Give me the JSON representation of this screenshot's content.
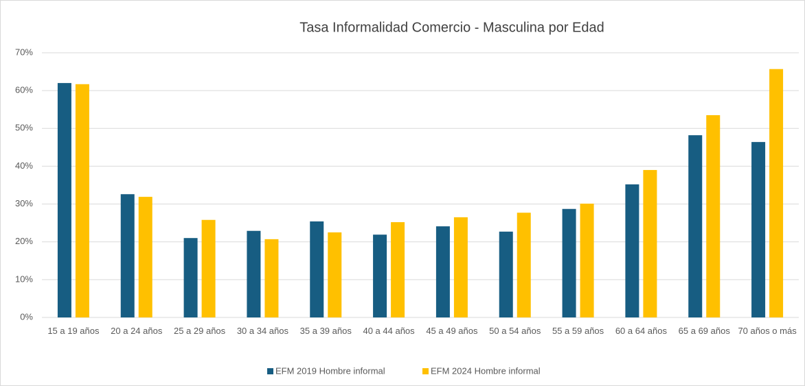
{
  "chart_data": {
    "type": "bar",
    "title": "Tasa Informalidad Comercio -  Masculina por Edad",
    "categories": [
      "15 a 19 años",
      "20 a 24 años",
      "25 a 29 años",
      "30 a 34 años",
      "35 a 39 años",
      "40 a 44 años",
      "45 a 49 años",
      "50 a 54 años",
      "55 a 59 años",
      "60 a 64 años",
      "65 a 69 años",
      "70 años o más"
    ],
    "series": [
      {
        "name": "EFM 2019 Hombre informal",
        "color": "#175d82",
        "values": [
          62.0,
          32.6,
          21.0,
          22.9,
          25.4,
          21.9,
          24.1,
          22.7,
          28.7,
          35.2,
          48.2,
          46.4
        ]
      },
      {
        "name": "EFM 2024 Hombre informal",
        "color": "#ffc000",
        "values": [
          61.7,
          31.9,
          25.8,
          20.7,
          22.5,
          25.2,
          26.5,
          27.7,
          30.1,
          39.0,
          53.5,
          65.7
        ]
      }
    ],
    "ylim": [
      0,
      70
    ],
    "yticks": [
      {
        "value": 0,
        "label": "0%"
      },
      {
        "value": 10,
        "label": "10%"
      },
      {
        "value": 20,
        "label": "20%"
      },
      {
        "value": 30,
        "label": "30%"
      },
      {
        "value": 40,
        "label": "40%"
      },
      {
        "value": 50,
        "label": "50%"
      },
      {
        "value": 60,
        "label": "60%"
      },
      {
        "value": 70,
        "label": "70%"
      }
    ],
    "grid": true,
    "legend": "bottom"
  }
}
